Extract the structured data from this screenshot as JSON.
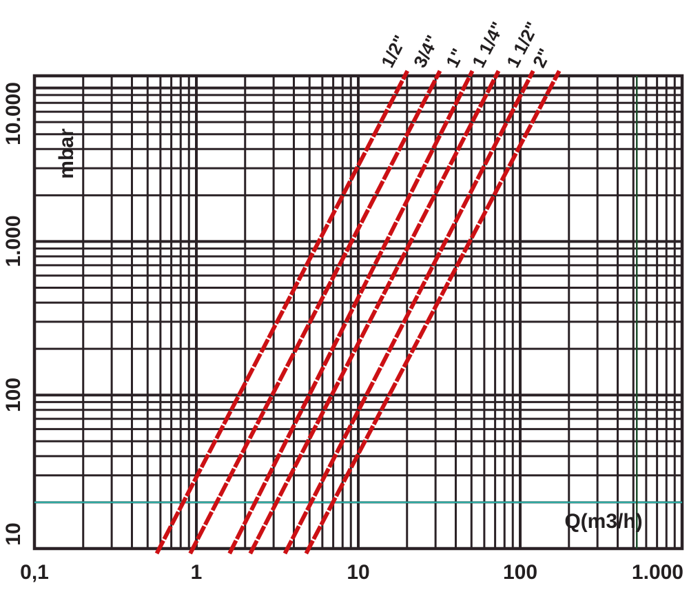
{
  "page": {
    "background": "#ffffff",
    "text_color": "#231f20"
  },
  "chart_data": {
    "type": "line",
    "scale": "log-log",
    "title": "",
    "grid": {
      "minor_lines": true,
      "color": "#2b2226",
      "frame": true
    },
    "x_axis": {
      "label": "Q(m3/h)",
      "min": 0.1,
      "max": 1000,
      "scale": "log",
      "ticks": [
        {
          "label": "0,1",
          "value": 0.1
        },
        {
          "label": "1",
          "value": 1
        },
        {
          "label": "10",
          "value": 10
        },
        {
          "label": "100",
          "value": 100
        },
        {
          "label": "1.000",
          "value": 1000
        }
      ]
    },
    "y_axis": {
      "label": "mbar",
      "min": 10,
      "max": 12000,
      "scale": "log",
      "ticks": [
        {
          "label": "10",
          "value": 10
        },
        {
          "label": "100",
          "value": 100
        },
        {
          "label": "1.000",
          "value": 1000
        },
        {
          "label": "10.000",
          "value": 10000
        }
      ]
    },
    "reference_lines": [
      {
        "name": "pressure-20-mbar-line",
        "orientation": "horizontal",
        "value": 20,
        "color": "#2fa8a0"
      },
      {
        "name": "flow-reference-line",
        "orientation": "vertical",
        "value": 525,
        "color": "#1d4f2d"
      }
    ],
    "series": [
      {
        "name": "1/2\"",
        "color": "#cc1014",
        "points": [
          [
            0.59,
            10
          ],
          [
            19.4,
            12000
          ]
        ]
      },
      {
        "name": "3/4\"",
        "color": "#cc1014",
        "points": [
          [
            0.95,
            10
          ],
          [
            30.8,
            12000
          ]
        ]
      },
      {
        "name": "1\"",
        "color": "#cc1014",
        "points": [
          [
            1.66,
            10
          ],
          [
            48.9,
            12000
          ]
        ]
      },
      {
        "name": "1 1/4\"",
        "color": "#cc1014",
        "points": [
          [
            2.23,
            10
          ],
          [
            70.9,
            12000
          ]
        ]
      },
      {
        "name": "1 1/2\"",
        "color": "#cc1014",
        "points": [
          [
            3.65,
            10
          ],
          [
            116,
            12000
          ]
        ]
      },
      {
        "name": "2\"",
        "color": "#cc1014",
        "points": [
          [
            4.94,
            10
          ],
          [
            168,
            12000
          ]
        ]
      }
    ]
  }
}
